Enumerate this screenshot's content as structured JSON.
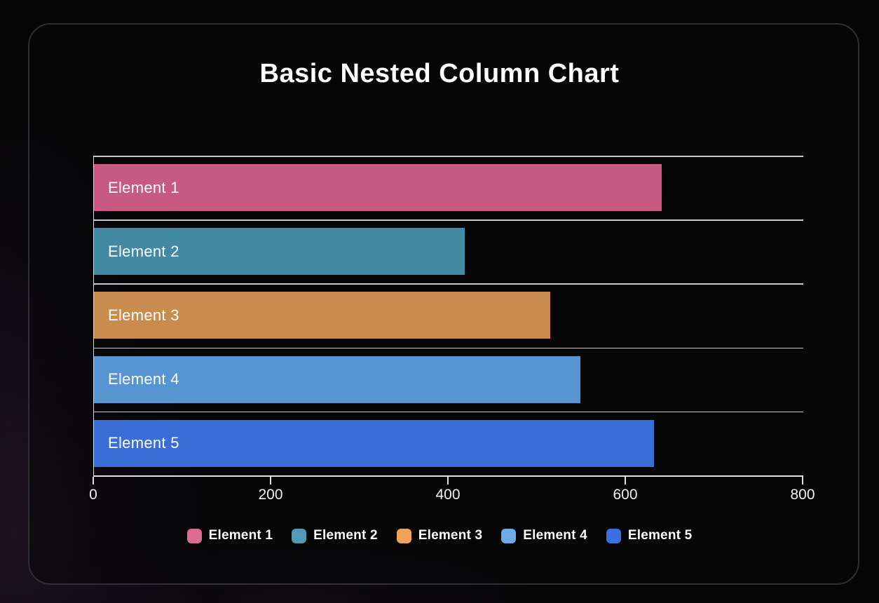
{
  "title": "Basic Nested Column Chart",
  "chart_data": {
    "type": "bar",
    "orientation": "horizontal",
    "title": "Basic Nested Column Chart",
    "categories": [
      "Element 1",
      "Element 2",
      "Element 3",
      "Element 4",
      "Element 5"
    ],
    "values": [
      640,
      418,
      515,
      549,
      632
    ],
    "bar_colors": [
      "#c75a80",
      "#428aa4",
      "#c88c4c",
      "#5794d2",
      "#3a6ed6"
    ],
    "legend_colors": [
      "#dc6c92",
      "#529ab6",
      "#eea355",
      "#6ea9e9",
      "#3b70e2"
    ],
    "xlim": [
      0,
      800
    ],
    "xticks": [
      "0",
      "200",
      "400",
      "600",
      "800"
    ],
    "xtick_values": [
      0,
      200,
      400,
      600,
      800
    ],
    "grid": true,
    "legend_position": "bottom",
    "legend": [
      "Element 1",
      "Element 2",
      "Element 3",
      "Element 4",
      "Element 5"
    ],
    "bar_label_color": "#ffffff",
    "axis_color": "#e8e8e8",
    "background_color": "#050505",
    "panel_border_color": "#2e2f37"
  }
}
